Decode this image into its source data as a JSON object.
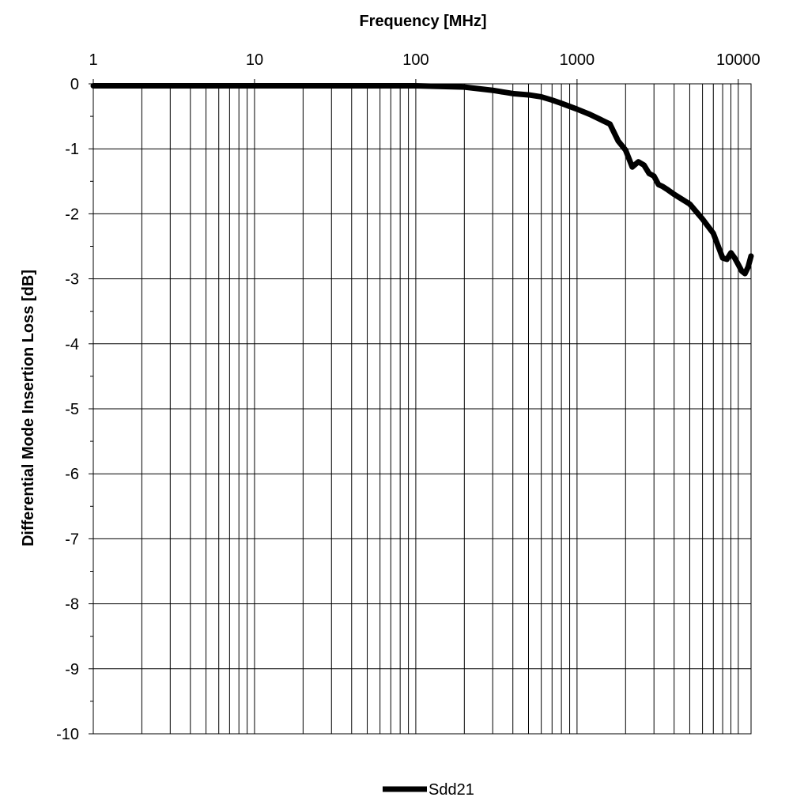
{
  "chart_data": {
    "type": "line",
    "xlabel": "Frequency [MHz]",
    "ylabel": "Differential Mode Insertion Loss [dB]",
    "x_scale": "log",
    "x_axis_position": "top",
    "xlim": [
      1,
      12000
    ],
    "ylim": [
      -10,
      0
    ],
    "x_ticks": [
      "1",
      "10",
      "100",
      "1000",
      "10000"
    ],
    "y_ticks": [
      "0",
      "-1",
      "-2",
      "-3",
      "-4",
      "-5",
      "-6",
      "-7",
      "-8",
      "-9",
      "-10"
    ],
    "grid": true,
    "legend_position": "bottom",
    "series": [
      {
        "name": "Sdd21",
        "color": "#000000",
        "x": [
          1,
          10,
          100,
          200,
          300,
          400,
          500,
          600,
          700,
          800,
          1000,
          1200,
          1400,
          1600,
          1800,
          2000,
          2200,
          2400,
          2600,
          2800,
          3000,
          3200,
          3400,
          3600,
          4000,
          5000,
          6000,
          7000,
          8000,
          8500,
          9000,
          9500,
          10000,
          10500,
          11000,
          11500,
          12000
        ],
        "values": [
          -0.03,
          -0.03,
          -0.03,
          -0.05,
          -0.1,
          -0.15,
          -0.17,
          -0.2,
          -0.25,
          -0.3,
          -0.39,
          -0.47,
          -0.55,
          -0.62,
          -0.88,
          -1.02,
          -1.28,
          -1.2,
          -1.25,
          -1.38,
          -1.42,
          -1.55,
          -1.58,
          -1.62,
          -1.7,
          -1.85,
          -2.08,
          -2.3,
          -2.68,
          -2.7,
          -2.6,
          -2.68,
          -2.78,
          -2.88,
          -2.92,
          -2.82,
          -2.65
        ]
      }
    ]
  }
}
